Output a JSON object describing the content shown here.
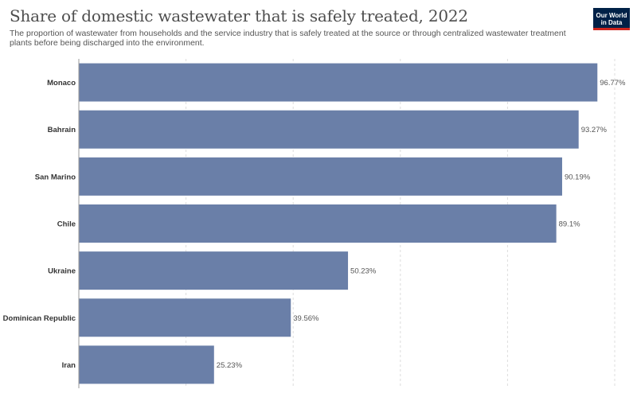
{
  "title": "Share of domestic wastewater that is safely treated, 2022",
  "subtitle": "The proportion of wastewater from households and the service industry that is safely treated at the source or through centralized wastewater treatment plants before being discharged into the environment.",
  "logo": {
    "line1": "Our World",
    "line2": "in Data"
  },
  "colors": {
    "bar": "#6a7fa8",
    "grid": "#dddddd",
    "axis": "#999999",
    "logo_bg": "#002147",
    "logo_accent": "#ce261e"
  },
  "chart_data": {
    "type": "bar",
    "orientation": "horizontal",
    "categories": [
      "Monaco",
      "Bahrain",
      "San Marino",
      "Chile",
      "Ukraine",
      "Dominican Republic",
      "Iran"
    ],
    "values": [
      96.77,
      93.27,
      90.19,
      89.1,
      50.23,
      39.56,
      25.23
    ],
    "value_labels": [
      "96.77%",
      "93.27%",
      "90.19%",
      "89.1%",
      "50.23%",
      "39.56%",
      "25.23%"
    ],
    "xlim": [
      0,
      100
    ],
    "grid": true,
    "gridlines_at": [
      20,
      40,
      60,
      80,
      100
    ]
  }
}
